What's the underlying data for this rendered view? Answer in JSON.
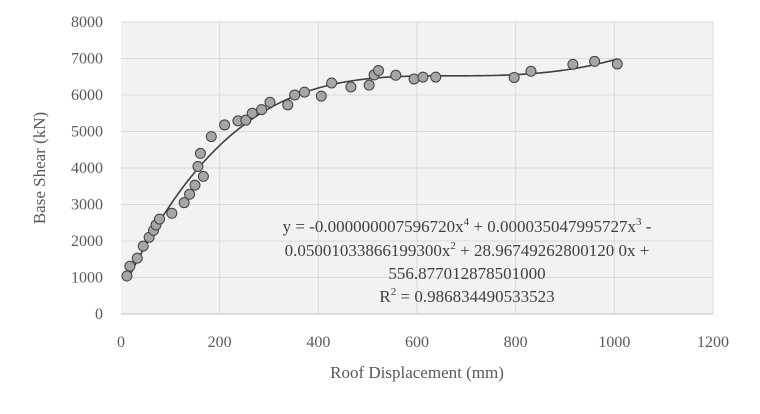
{
  "chart_data": {
    "type": "scatter",
    "title": "",
    "xlabel": "Roof Displacement (mm)",
    "ylabel": "Base Shear (kN)",
    "xlim": [
      0,
      1200
    ],
    "ylim": [
      0,
      8000
    ],
    "x_ticks": [
      "0",
      "200",
      "400",
      "600",
      "800",
      "1000",
      "1200"
    ],
    "y_ticks": [
      "0",
      "1000",
      "2000",
      "3000",
      "4000",
      "5000",
      "6000",
      "7000",
      "8000"
    ],
    "grid": true,
    "legend": "none",
    "series": [
      {
        "points": [
          [
            12,
            1040
          ],
          [
            18,
            1310
          ],
          [
            33,
            1530
          ],
          [
            45,
            1860
          ],
          [
            57,
            2100
          ],
          [
            66,
            2290
          ],
          [
            71,
            2440
          ],
          [
            78,
            2600
          ],
          [
            103,
            2760
          ],
          [
            128,
            3050
          ],
          [
            139,
            3280
          ],
          [
            150,
            3530
          ],
          [
            156,
            4040
          ],
          [
            161,
            4400
          ],
          [
            167,
            3770
          ],
          [
            183,
            4860
          ],
          [
            210,
            5180
          ],
          [
            237,
            5290
          ],
          [
            253,
            5310
          ],
          [
            266,
            5500
          ],
          [
            285,
            5600
          ],
          [
            302,
            5800
          ],
          [
            338,
            5730
          ],
          [
            352,
            6000
          ],
          [
            372,
            6080
          ],
          [
            406,
            5970
          ],
          [
            427,
            6330
          ],
          [
            466,
            6220
          ],
          [
            503,
            6270
          ],
          [
            513,
            6550
          ],
          [
            522,
            6670
          ],
          [
            557,
            6540
          ],
          [
            594,
            6440
          ],
          [
            612,
            6490
          ],
          [
            638,
            6490
          ],
          [
            797,
            6480
          ],
          [
            831,
            6650
          ],
          [
            916,
            6840
          ],
          [
            960,
            6920
          ],
          [
            1006,
            6850
          ]
        ],
        "marker_color": "#a6a6a6",
        "marker_edge": "#404040"
      }
    ],
    "trendline": {
      "type": "polynomial",
      "order": 4,
      "coefficients": [
        556.877012878501,
        28.9674926280012,
        -0.050010338661993,
        3.5047995727e-05,
        -7.59672e-09
      ],
      "x_range": [
        12,
        1006
      ],
      "color": "#404040"
    },
    "annotation": {
      "line1_a": "y = -0.000000007596720x",
      "line1_b": " + 0.000035047995727x",
      "line1_c": " -",
      "sup4": "4",
      "sup3": "3",
      "line2_a": "0.05001033866199300x",
      "sup2": "2",
      "line2_b": " + 28.96749262800120 0x +",
      "line3": "556.877012878501000",
      "r2_label": "R",
      "r2_sup": "2",
      "r2_value": " = 0.986834490533523"
    }
  },
  "colors": {
    "plot_background": "#f2f2f2",
    "grid": "#d9d9d9",
    "axis_line": "#bfbfbf",
    "text": "#595959"
  }
}
